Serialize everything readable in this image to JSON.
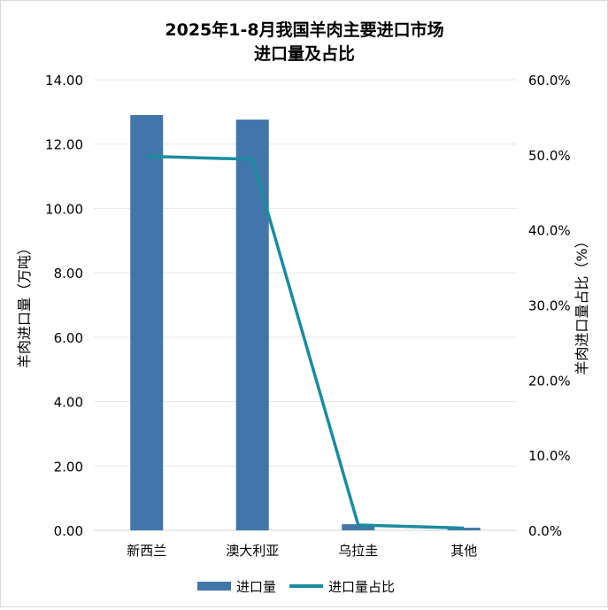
{
  "chart_data": {
    "type": "bar+line",
    "title_line1": "2025年1-8月我国羊肉主要进口市场",
    "title_line2": "进口量及占比",
    "categories": [
      "新西兰",
      "澳大利亚",
      "乌拉圭",
      "其他"
    ],
    "ylabel": "羊肉进口量（万吨）",
    "y2label": "羊肉进口量占比（%）",
    "ylim": [
      0,
      14
    ],
    "y2lim": [
      0,
      60
    ],
    "yticks": [
      "0.00",
      "2.00",
      "4.00",
      "6.00",
      "8.00",
      "10.00",
      "12.00",
      "14.00"
    ],
    "y2ticks": [
      "0.0%",
      "10.0%",
      "20.0%",
      "30.0%",
      "40.0%",
      "50.0%",
      "60.0%"
    ],
    "grid": true,
    "legend": "bottom",
    "series": [
      {
        "name": "进口量",
        "type": "bar",
        "axis": "left",
        "color": "#4275AA",
        "values": [
          12.9,
          12.76,
          0.19,
          0.08
        ]
      },
      {
        "name": "进口量占比",
        "type": "line",
        "axis": "right",
        "color": "#1A8C9F",
        "values": [
          49.8,
          49.4,
          0.7,
          0.3
        ]
      }
    ]
  }
}
